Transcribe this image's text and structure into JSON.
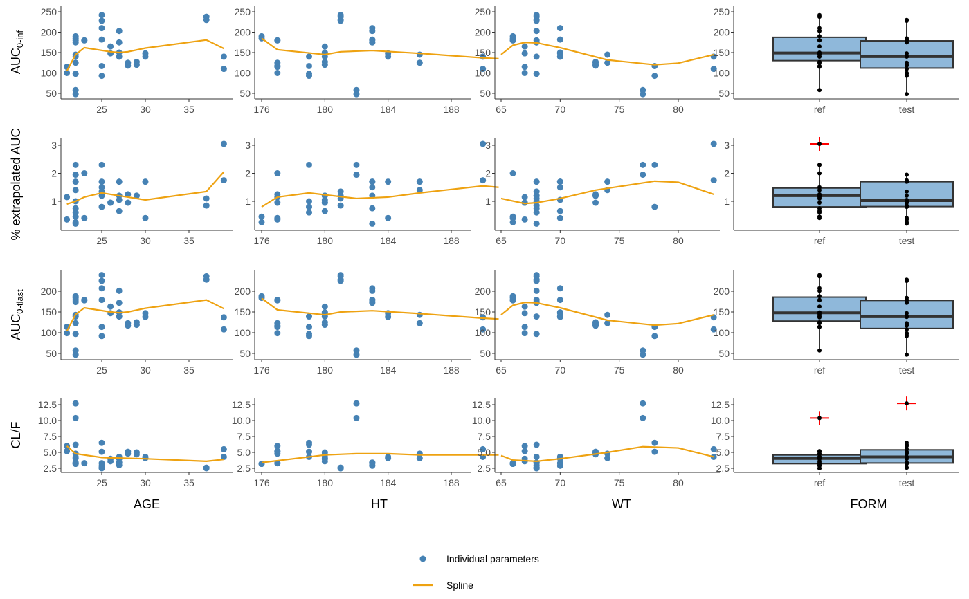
{
  "chart_data": {
    "type": "scatter-grid",
    "colors": {
      "points": "#4682b4",
      "spline": "#eea211",
      "box_fill": "#8fb8da",
      "box_line": "#333333",
      "outlier": "#ff0000"
    },
    "columns": [
      {
        "key": "age",
        "label": "AGE",
        "ticks": [
          25,
          30,
          35
        ],
        "range": [
          21,
          39
        ]
      },
      {
        "key": "ht",
        "label": "HT",
        "ticks": [
          176,
          180,
          184,
          188
        ],
        "range": [
          176,
          191
        ]
      },
      {
        "key": "wt",
        "label": "WT",
        "ticks": [
          65,
          70,
          75,
          80
        ],
        "range": [
          65,
          83
        ]
      },
      {
        "key": "form",
        "label": "FORM",
        "categories": [
          "ref",
          "test"
        ]
      }
    ],
    "rows": [
      {
        "key": "auc_inf",
        "label": "AUC",
        "label_sub": "0-inf",
        "ticks": [
          50,
          100,
          150,
          200,
          250
        ],
        "tick_labels": [
          "50",
          "100",
          "150",
          "200",
          "250"
        ]
      },
      {
        "key": "pct",
        "label": "% extrapolated AUC",
        "label_sub": "",
        "ticks": [
          1,
          2,
          3
        ],
        "tick_labels": [
          "1",
          "2",
          "3"
        ]
      },
      {
        "key": "auc_last",
        "label": "AUC",
        "label_sub": "0-tlast",
        "ticks": [
          50,
          100,
          150,
          200
        ],
        "tick_labels": [
          "50",
          "100",
          "150",
          "200"
        ]
      },
      {
        "key": "clf",
        "label": "CL/F",
        "label_sub": "",
        "ticks": [
          2.5,
          5,
          7.5,
          10,
          12.5
        ],
        "tick_labels": [
          "2.5",
          "5.0",
          "7.5",
          "10.0",
          "12.5"
        ]
      }
    ],
    "subjects": [
      {
        "age": 21,
        "ht": 177,
        "wt": 67,
        "ref": [
          115,
          1.15,
          114,
          5.2
        ],
        "test": [
          100,
          0.35,
          99,
          6.0
        ]
      },
      {
        "age": 22,
        "ht": 176,
        "wt": 66,
        "ref": [
          190,
          0.45,
          188,
          3.2
        ],
        "test": [
          185,
          0.25,
          184,
          3.2
        ]
      },
      {
        "age": 22,
        "ht": 182,
        "wt": 77,
        "ref": [
          58,
          2.3,
          57,
          10.4
        ],
        "test": [
          48,
          1.95,
          47,
          12.7
        ]
      },
      {
        "age": 22,
        "ht": 183,
        "wt": 68,
        "ref": [
          180,
          0.75,
          179,
          3.3
        ],
        "test": [
          175,
          0.2,
          174,
          3.4
        ]
      },
      {
        "age": 22,
        "ht": 186,
        "wt": 74,
        "ref": [
          145,
          1.4,
          143,
          4.1
        ],
        "test": [
          125,
          1.7,
          123,
          4.8
        ]
      },
      {
        "age": 22,
        "ht": 179,
        "wt": 68,
        "ref": [
          140,
          0.6,
          139,
          4.3
        ],
        "test": [
          98,
          1.0,
          97,
          6.2
        ]
      },
      {
        "age": 23,
        "ht": 177,
        "wt": 66,
        "ref": [
          180,
          2.0,
          178,
          3.3
        ],
        "test": [
          180,
          0.4,
          179,
          3.3
        ]
      },
      {
        "age": 25,
        "ht": 181,
        "wt": 68,
        "ref": [
          242,
          1.2,
          239,
          2.5
        ],
        "test": [
          228,
          1.35,
          225,
          2.6
        ]
      },
      {
        "age": 25,
        "ht": 183,
        "wt": 70,
        "ref": [
          210,
          1.5,
          207,
          2.9
        ],
        "test": [
          182,
          1.7,
          179,
          3.3
        ]
      },
      {
        "age": 25,
        "ht": 179,
        "wt": 78,
        "ref": [
          117,
          2.3,
          114,
          5.1
        ],
        "test": [
          93,
          0.8,
          92,
          6.5
        ]
      },
      {
        "age": 26,
        "ht": 180,
        "wt": 67,
        "ref": [
          165,
          0.95,
          163,
          3.6
        ],
        "test": [
          148,
          0.95,
          147,
          4.0
        ]
      },
      {
        "age": 27,
        "ht": 183,
        "wt": 68,
        "ref": [
          203,
          1.2,
          201,
          3.0
        ],
        "test": [
          175,
          1.7,
          172,
          3.4
        ]
      },
      {
        "age": 27,
        "ht": 180,
        "wt": 70,
        "ref": [
          150,
          0.65,
          149,
          4.0
        ],
        "test": [
          140,
          1.05,
          139,
          4.3
        ]
      },
      {
        "age": 28,
        "ht": 177,
        "wt": 73,
        "ref": [
          125,
          1.25,
          123,
          4.8
        ],
        "test": [
          118,
          0.95,
          117,
          5.1
        ]
      },
      {
        "age": 29,
        "ht": 180,
        "wt": 73,
        "ref": [
          127,
          1.2,
          125,
          4.7
        ],
        "test": [
          120,
          1.2,
          119,
          5.0
        ]
      },
      {
        "age": 30,
        "ht": 184,
        "wt": 70,
        "ref": [
          148,
          0.4,
          147,
          4.1
        ],
        "test": [
          140,
          1.7,
          138,
          4.3
        ]
      },
      {
        "age": 37,
        "ht": 181,
        "wt": 68,
        "ref": [
          238,
          1.1,
          236,
          2.5
        ],
        "test": [
          230,
          0.85,
          228,
          2.6
        ]
      },
      {
        "age": 39,
        "ht": 190,
        "wt": 83,
        "ref": [
          140,
          3.05,
          137,
          4.3
        ],
        "test": [
          110,
          1.75,
          108,
          5.5
        ]
      }
    ],
    "splines": {
      "auc_inf": {
        "age": [
          [
            21,
            105
          ],
          [
            22,
            145
          ],
          [
            23,
            162
          ],
          [
            26,
            152
          ],
          [
            27,
            150
          ],
          [
            28,
            152
          ],
          [
            30,
            161
          ],
          [
            37,
            181
          ],
          [
            39,
            160
          ]
        ],
        "ht": [
          [
            176,
            185
          ],
          [
            177,
            157
          ],
          [
            180,
            145
          ],
          [
            181,
            152
          ],
          [
            183,
            155
          ],
          [
            186,
            148
          ],
          [
            190,
            137
          ],
          [
            191,
            135
          ]
        ],
        "wt": [
          [
            65,
            145
          ],
          [
            66,
            168
          ],
          [
            67,
            175
          ],
          [
            68,
            174
          ],
          [
            70,
            162
          ],
          [
            74,
            132
          ],
          [
            78,
            120
          ],
          [
            80,
            124
          ],
          [
            83,
            145
          ]
        ]
      },
      "pct": {
        "age": [
          [
            21,
            0.9
          ],
          [
            22,
            1.0
          ],
          [
            23,
            1.15
          ],
          [
            25,
            1.3
          ],
          [
            27,
            1.2
          ],
          [
            28,
            1.15
          ],
          [
            30,
            1.05
          ],
          [
            37,
            1.35
          ],
          [
            39,
            2.05
          ]
        ],
        "ht": [
          [
            176,
            0.8
          ],
          [
            177,
            1.15
          ],
          [
            179,
            1.3
          ],
          [
            182,
            1.1
          ],
          [
            184,
            1.15
          ],
          [
            186,
            1.3
          ],
          [
            190,
            1.55
          ],
          [
            191,
            1.5
          ]
        ],
        "wt": [
          [
            65,
            1.1
          ],
          [
            67,
            0.92
          ],
          [
            68,
            0.95
          ],
          [
            70,
            1.1
          ],
          [
            73,
            1.4
          ],
          [
            78,
            1.72
          ],
          [
            80,
            1.68
          ],
          [
            83,
            1.25
          ]
        ]
      },
      "auc_last": {
        "age": [
          [
            21,
            104
          ],
          [
            22,
            144
          ],
          [
            23,
            160
          ],
          [
            26,
            150
          ],
          [
            27,
            148
          ],
          [
            28,
            150
          ],
          [
            30,
            159
          ],
          [
            37,
            179
          ],
          [
            39,
            158
          ]
        ],
        "ht": [
          [
            176,
            183
          ],
          [
            177,
            155
          ],
          [
            180,
            143
          ],
          [
            181,
            150
          ],
          [
            183,
            153
          ],
          [
            186,
            146
          ],
          [
            190,
            135
          ],
          [
            191,
            133
          ]
        ],
        "wt": [
          [
            65,
            143
          ],
          [
            66,
            166
          ],
          [
            67,
            173
          ],
          [
            68,
            172
          ],
          [
            70,
            160
          ],
          [
            74,
            130
          ],
          [
            78,
            118
          ],
          [
            80,
            122
          ],
          [
            83,
            143
          ]
        ]
      },
      "clf": {
        "age": [
          [
            21,
            6.0
          ],
          [
            22,
            4.8
          ],
          [
            25,
            4.2
          ],
          [
            27,
            4.1
          ],
          [
            30,
            4.0
          ],
          [
            37,
            3.6
          ],
          [
            39,
            3.9
          ]
        ],
        "ht": [
          [
            176,
            3.4
          ],
          [
            180,
            4.6
          ],
          [
            182,
            4.8
          ],
          [
            184,
            4.8
          ],
          [
            186,
            4.6
          ],
          [
            190,
            4.6
          ],
          [
            191,
            4.6
          ]
        ],
        "wt": [
          [
            65,
            4.5
          ],
          [
            66,
            3.8
          ],
          [
            68,
            3.6
          ],
          [
            70,
            4.0
          ],
          [
            74,
            5.0
          ],
          [
            77,
            5.9
          ],
          [
            80,
            5.7
          ],
          [
            83,
            4.3
          ]
        ]
      }
    },
    "legend": {
      "points": "Individual parameters",
      "spline": "Spline",
      "placement": "bottom"
    }
  }
}
